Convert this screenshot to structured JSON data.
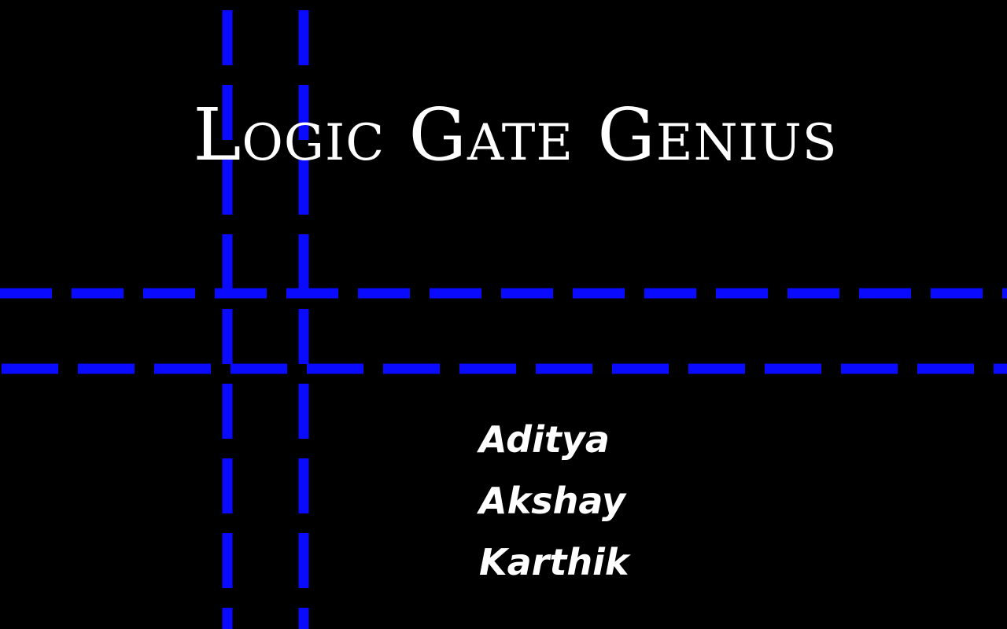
{
  "title_screen": {
    "title": "Logic Gate Genius",
    "credits": [
      "Aditya",
      "Akshay",
      "Karthik"
    ]
  },
  "colors": {
    "background": "#000000",
    "wire": "#0a0aff",
    "text": "#ffffff"
  }
}
